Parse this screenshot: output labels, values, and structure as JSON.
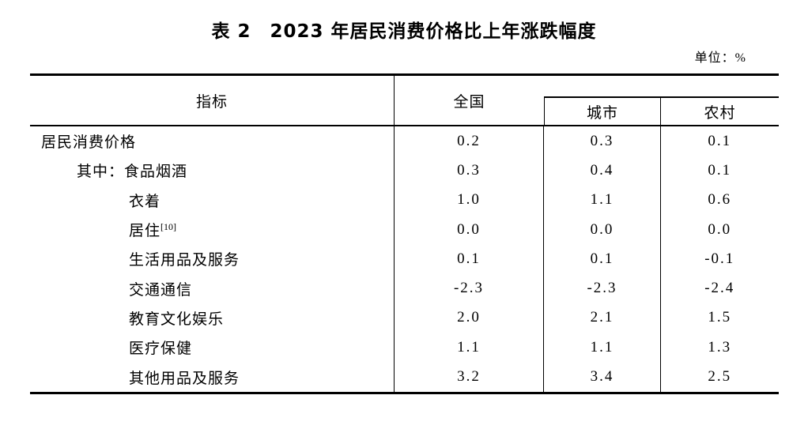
{
  "page": {
    "title": "表 2　2023 年居民消费价格比上年涨跌幅度",
    "unit_label": "单位：%"
  },
  "table": {
    "headers": {
      "indicator": "指标",
      "national": "全国",
      "urban": "城市",
      "rural": "农村"
    },
    "rows": [
      {
        "label": "居民消费价格",
        "national": "0.2",
        "urban": "0.3",
        "rural": "0.1"
      },
      {
        "label": "其中：食品烟酒",
        "national": "0.3",
        "urban": "0.4",
        "rural": "0.1"
      },
      {
        "label": "衣着",
        "national": "1.0",
        "urban": "1.1",
        "rural": "0.6"
      },
      {
        "label": "居住",
        "sup": "[10]",
        "national": "0.0",
        "urban": "0.0",
        "rural": "0.0"
      },
      {
        "label": "生活用品及服务",
        "national": "0.1",
        "urban": "0.1",
        "rural": "-0.1"
      },
      {
        "label": "交通通信",
        "national": "-2.3",
        "urban": "-2.3",
        "rural": "-2.4"
      },
      {
        "label": "教育文化娱乐",
        "national": "2.0",
        "urban": "2.1",
        "rural": "1.5"
      },
      {
        "label": "医疗保健",
        "national": "1.1",
        "urban": "1.1",
        "rural": "1.3"
      },
      {
        "label": "其他用品及服务",
        "national": "3.2",
        "urban": "3.4",
        "rural": "2.5"
      }
    ]
  }
}
